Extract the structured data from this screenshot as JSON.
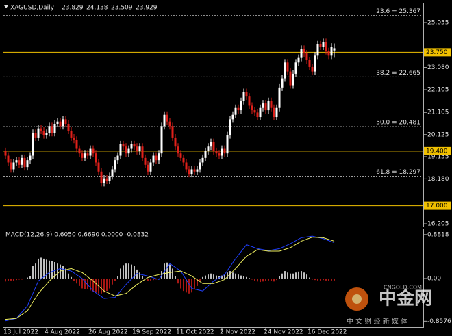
{
  "chart_data": [
    {
      "type": "candlestick",
      "header": {
        "symbol": "XAGUSD,Daily",
        "quote": [
          23.829,
          24.138,
          23.509,
          23.929
        ]
      },
      "categories": [
        "13 Jul 2022",
        null,
        null,
        null,
        null,
        null,
        null,
        null,
        null,
        null,
        null,
        null,
        null,
        null,
        null,
        "4 Aug 2022",
        null,
        null,
        null,
        null,
        null,
        null,
        null,
        null,
        null,
        null,
        null,
        null,
        null,
        null,
        null,
        "26 Aug 2022",
        null,
        null,
        null,
        null,
        null,
        null,
        null,
        null,
        null,
        null,
        null,
        null,
        null,
        null,
        null,
        "19 Sep 2022",
        null,
        null,
        null,
        null,
        null,
        null,
        null,
        null,
        null,
        null,
        null,
        null,
        null,
        null,
        null,
        "11 Oct 2022",
        null,
        null,
        null,
        null,
        null,
        null,
        null,
        null,
        null,
        null,
        null,
        null,
        null,
        null,
        null,
        "2 Nov 2022",
        null,
        null,
        null,
        null,
        null,
        null,
        null,
        null,
        null,
        null,
        null,
        null,
        null,
        null,
        null,
        "24 Nov 2022",
        null,
        null,
        null,
        null,
        null,
        null,
        null,
        null,
        null,
        null,
        null,
        null,
        null,
        null,
        null,
        "16 Dec 2022",
        null,
        null,
        null,
        null,
        null,
        null,
        null,
        null,
        null
      ],
      "candles": [
        [
          19.4,
          19.55,
          19.05,
          19.2
        ],
        [
          19.2,
          19.35,
          18.75,
          18.9
        ],
        [
          18.9,
          19.05,
          18.45,
          18.6
        ],
        [
          18.6,
          19.05,
          18.45,
          18.9
        ],
        [
          18.9,
          19.15,
          18.75,
          19.0
        ],
        [
          19.0,
          19.15,
          18.65,
          18.8
        ],
        [
          18.8,
          19.25,
          18.65,
          19.1
        ],
        [
          19.1,
          19.25,
          18.55,
          18.7
        ],
        [
          18.7,
          19.15,
          18.55,
          19.0
        ],
        [
          19.0,
          19.35,
          18.85,
          19.2
        ],
        [
          19.2,
          20.35,
          19.05,
          20.2
        ],
        [
          20.2,
          20.35,
          19.85,
          20.0
        ],
        [
          20.0,
          20.55,
          19.85,
          20.4
        ],
        [
          20.4,
          20.55,
          20.15,
          20.3
        ],
        [
          20.3,
          20.45,
          19.95,
          20.1
        ],
        [
          20.1,
          20.35,
          19.95,
          20.2
        ],
        [
          20.2,
          20.65,
          20.05,
          20.5
        ],
        [
          20.5,
          20.65,
          20.05,
          20.2
        ],
        [
          20.2,
          20.75,
          20.05,
          20.6
        ],
        [
          20.6,
          20.85,
          20.45,
          20.7
        ],
        [
          20.7,
          20.85,
          20.35,
          20.5
        ],
        [
          20.5,
          20.95,
          20.35,
          20.8
        ],
        [
          20.8,
          20.95,
          20.45,
          20.6
        ],
        [
          20.6,
          20.75,
          20.15,
          20.3
        ],
        [
          20.3,
          20.45,
          19.85,
          20.0
        ],
        [
          20.0,
          20.15,
          19.75,
          19.9
        ],
        [
          19.9,
          20.05,
          19.35,
          19.5
        ],
        [
          19.5,
          19.65,
          19.15,
          19.3
        ],
        [
          19.3,
          19.45,
          18.95,
          19.1
        ],
        [
          19.1,
          19.45,
          18.95,
          19.3
        ],
        [
          19.3,
          19.45,
          19.05,
          19.2
        ],
        [
          19.2,
          19.65,
          19.05,
          19.5
        ],
        [
          19.5,
          19.65,
          19.15,
          19.3
        ],
        [
          19.3,
          19.45,
          18.75,
          18.9
        ],
        [
          18.9,
          19.05,
          18.35,
          18.5
        ],
        [
          18.5,
          18.65,
          17.85,
          18.0
        ],
        [
          18.0,
          18.35,
          17.85,
          18.2
        ],
        [
          18.2,
          18.35,
          17.95,
          18.1
        ],
        [
          18.1,
          18.45,
          17.95,
          18.3
        ],
        [
          18.3,
          18.75,
          18.15,
          18.6
        ],
        [
          18.6,
          19.15,
          18.45,
          19.0
        ],
        [
          19.0,
          19.35,
          18.85,
          19.2
        ],
        [
          19.2,
          19.85,
          19.05,
          19.7
        ],
        [
          19.7,
          19.85,
          19.45,
          19.6
        ],
        [
          19.6,
          19.75,
          19.15,
          19.3
        ],
        [
          19.3,
          19.65,
          19.15,
          19.5
        ],
        [
          19.5,
          19.85,
          19.35,
          19.7
        ],
        [
          19.7,
          19.85,
          19.45,
          19.6
        ],
        [
          19.6,
          19.75,
          19.25,
          19.4
        ],
        [
          19.4,
          19.75,
          19.25,
          19.6
        ],
        [
          19.6,
          19.75,
          18.95,
          19.1
        ],
        [
          19.1,
          19.25,
          18.65,
          18.8
        ],
        [
          18.8,
          18.95,
          18.35,
          18.5
        ],
        [
          18.5,
          19.05,
          18.35,
          18.9
        ],
        [
          18.9,
          19.35,
          18.75,
          19.2
        ],
        [
          19.2,
          19.35,
          18.85,
          19.0
        ],
        [
          19.0,
          19.45,
          18.85,
          19.3
        ],
        [
          19.3,
          20.65,
          19.15,
          20.5
        ],
        [
          20.5,
          21.15,
          20.35,
          21.0
        ],
        [
          21.0,
          21.15,
          20.55,
          20.7
        ],
        [
          20.7,
          20.85,
          20.35,
          20.5
        ],
        [
          20.5,
          20.65,
          19.85,
          20.0
        ],
        [
          20.0,
          20.15,
          19.45,
          19.6
        ],
        [
          19.6,
          19.75,
          19.15,
          19.3
        ],
        [
          19.3,
          19.45,
          18.95,
          19.1
        ],
        [
          19.1,
          19.25,
          18.75,
          18.9
        ],
        [
          18.9,
          19.05,
          18.45,
          18.6
        ],
        [
          18.6,
          18.75,
          18.25,
          18.4
        ],
        [
          18.4,
          18.75,
          18.25,
          18.6
        ],
        [
          18.6,
          18.75,
          18.35,
          18.5
        ],
        [
          18.5,
          18.75,
          18.35,
          18.6
        ],
        [
          18.6,
          19.05,
          18.45,
          18.9
        ],
        [
          18.9,
          19.25,
          18.75,
          19.1
        ],
        [
          19.1,
          19.55,
          18.95,
          19.4
        ],
        [
          19.4,
          19.75,
          19.25,
          19.6
        ],
        [
          19.6,
          19.95,
          19.45,
          19.8
        ],
        [
          19.8,
          19.95,
          19.25,
          19.4
        ],
        [
          19.4,
          19.55,
          19.15,
          19.3
        ],
        [
          19.3,
          19.45,
          19.05,
          19.2
        ],
        [
          19.2,
          19.65,
          19.05,
          19.5
        ],
        [
          19.5,
          19.65,
          19.15,
          19.3
        ],
        [
          19.3,
          20.25,
          19.15,
          20.1
        ],
        [
          20.1,
          20.95,
          19.95,
          20.8
        ],
        [
          20.8,
          21.15,
          20.65,
          21.0
        ],
        [
          21.0,
          21.45,
          20.85,
          21.3
        ],
        [
          21.3,
          21.45,
          21.05,
          21.2
        ],
        [
          21.2,
          21.75,
          21.05,
          21.6
        ],
        [
          21.6,
          22.15,
          21.45,
          22.0
        ],
        [
          22.0,
          22.15,
          21.65,
          21.8
        ],
        [
          21.8,
          21.95,
          21.25,
          21.4
        ],
        [
          21.4,
          21.55,
          21.05,
          21.2
        ],
        [
          21.2,
          21.35,
          20.95,
          21.1
        ],
        [
          21.1,
          21.25,
          20.75,
          20.9
        ],
        [
          20.9,
          21.45,
          20.75,
          21.3
        ],
        [
          21.3,
          21.65,
          21.15,
          21.5
        ],
        [
          21.5,
          21.65,
          21.05,
          21.2
        ],
        [
          21.2,
          21.75,
          21.05,
          21.6
        ],
        [
          21.6,
          21.75,
          21.15,
          21.3
        ],
        [
          21.3,
          21.45,
          20.75,
          20.9
        ],
        [
          20.9,
          21.45,
          20.75,
          21.3
        ],
        [
          21.3,
          22.35,
          21.15,
          22.2
        ],
        [
          22.2,
          22.75,
          22.05,
          22.6
        ],
        [
          22.6,
          23.45,
          22.45,
          23.3
        ],
        [
          23.3,
          23.45,
          22.75,
          22.9
        ],
        [
          22.9,
          23.05,
          22.15,
          22.3
        ],
        [
          22.3,
          22.95,
          22.15,
          22.8
        ],
        [
          22.8,
          23.45,
          22.65,
          23.3
        ],
        [
          23.3,
          23.65,
          23.15,
          23.5
        ],
        [
          23.5,
          24.05,
          23.35,
          23.9
        ],
        [
          23.9,
          24.05,
          23.55,
          23.7
        ],
        [
          23.7,
          23.85,
          23.25,
          23.4
        ],
        [
          23.4,
          23.55,
          22.95,
          23.1
        ],
        [
          23.1,
          23.25,
          22.75,
          22.9
        ],
        [
          22.9,
          23.75,
          22.75,
          23.6
        ],
        [
          23.6,
          24.25,
          23.45,
          24.1
        ],
        [
          24.1,
          24.25,
          23.85,
          24.0
        ],
        [
          24.0,
          24.35,
          23.85,
          24.2
        ],
        [
          24.2,
          24.35,
          23.65,
          23.8
        ],
        [
          23.8,
          23.95,
          23.45,
          23.6
        ],
        [
          23.6,
          24.15,
          23.45,
          24.0
        ],
        [
          23.829,
          24.138,
          23.509,
          23.929
        ]
      ],
      "up_color": "#ffffff",
      "down_color": "#e0201a",
      "ylim": [
        16.085,
        25.928
      ],
      "yticks": [
        25.055,
        {
          "value": 23.08,
          "label": "23.080"
        },
        22.105,
        21.105,
        20.125,
        19.155,
        {
          "value": 18.18,
          "label": "18.180"
        },
        16.205
      ],
      "hlines": [
        {
          "value": 23.75,
          "label": "23.750"
        },
        {
          "value": 19.4,
          "label": "19.400"
        },
        {
          "value": 17.0,
          "label": "17.000"
        }
      ],
      "hline_color": "#f0c000",
      "fib_levels": [
        {
          "value": 25.367,
          "label": "23.6 = 25.367"
        },
        {
          "value": 22.665,
          "label": "38.2 = 22.665"
        },
        {
          "value": 20.481,
          "label": "50.0 = 20.481"
        },
        {
          "value": 18.297,
          "label": "61.8 = 18.297"
        }
      ]
    },
    {
      "type": "macd",
      "title": "MACD(12,26,9) 0.6050 0.6690 0.0000 -0.0832",
      "histogram": [
        -0.06,
        -0.05,
        -0.04,
        -0.05,
        -0.03,
        -0.02,
        -0.02,
        -0.01,
        0.02,
        0.05,
        0.25,
        0.3,
        0.4,
        0.42,
        0.4,
        0.38,
        0.36,
        0.35,
        0.33,
        0.3,
        0.28,
        0.25,
        0.2,
        0.1,
        0.03,
        -0.05,
        -0.1,
        -0.15,
        -0.2,
        -0.22,
        -0.22,
        -0.24,
        -0.26,
        -0.28,
        -0.3,
        -0.3,
        -0.28,
        -0.25,
        -0.2,
        -0.12,
        -0.05,
        0.05,
        0.2,
        0.27,
        0.3,
        0.3,
        0.28,
        0.25,
        0.18,
        0.12,
        0.05,
        -0.02,
        -0.05,
        -0.04,
        -0.03,
        -0.02,
        -0.01,
        0.15,
        0.3,
        0.32,
        0.28,
        0.2,
        0.05,
        -0.1,
        -0.2,
        -0.25,
        -0.28,
        -0.3,
        -0.28,
        -0.22,
        -0.15,
        -0.05,
        0.03,
        0.06,
        0.08,
        0.1,
        0.08,
        0.06,
        0.05,
        0.06,
        0.08,
        0.12,
        0.15,
        0.12,
        0.1,
        0.08,
        0.06,
        0.05,
        0.03,
        0.01,
        -0.02,
        -0.05,
        -0.06,
        -0.07,
        -0.06,
        -0.05,
        -0.04,
        -0.05,
        -0.06,
        -0.03,
        0.05,
        0.1,
        0.15,
        0.12,
        0.1,
        0.1,
        0.12,
        0.14,
        0.15,
        0.12,
        0.08,
        0.02,
        -0.02,
        -0.03,
        -0.04,
        -0.04,
        -0.03,
        -0.04,
        -0.05,
        -0.04,
        -0.04
      ],
      "hist_up_color": "#ffffff",
      "hist_down_color": "#e0201a",
      "x": [
        0,
        4,
        8,
        12,
        16,
        20,
        24,
        28,
        32,
        36,
        40,
        44,
        48,
        52,
        56,
        60,
        64,
        68,
        72,
        76,
        80,
        84,
        88,
        92,
        96,
        100,
        104,
        108,
        112,
        116,
        120
      ],
      "series": [
        {
          "color": "#2040ff",
          "values": [
            -0.85,
            -0.8,
            -0.55,
            -0.05,
            0.12,
            0.2,
            0.15,
            0.0,
            -0.25,
            -0.4,
            -0.38,
            -0.12,
            0.1,
            0.05,
            -0.02,
            0.3,
            0.15,
            -0.2,
            -0.25,
            -0.05,
            0.08,
            0.4,
            0.68,
            0.6,
            0.56,
            0.6,
            0.7,
            0.82,
            0.85,
            0.8,
            0.72
          ]
        },
        {
          "color": "#f0f060",
          "values": [
            -0.82,
            -0.8,
            -0.65,
            -0.3,
            -0.05,
            0.15,
            0.2,
            0.12,
            -0.05,
            -0.25,
            -0.35,
            -0.3,
            -0.12,
            0.02,
            0.08,
            0.12,
            0.15,
            0.05,
            -0.1,
            -0.1,
            -0.02,
            0.2,
            0.45,
            0.58,
            0.55,
            0.55,
            0.62,
            0.75,
            0.83,
            0.82,
            0.75
          ]
        }
      ],
      "ylim": [
        -0.977,
        0.99
      ],
      "yticks": [
        0.8818,
        {
          "value": 0,
          "label": "0.00"
        },
        -0.8576
      ]
    }
  ],
  "watermark": {
    "brand": "中金网",
    "site": "CNGOLD.COM",
    "slogan": "中 文 财 经 新 媒 体"
  }
}
